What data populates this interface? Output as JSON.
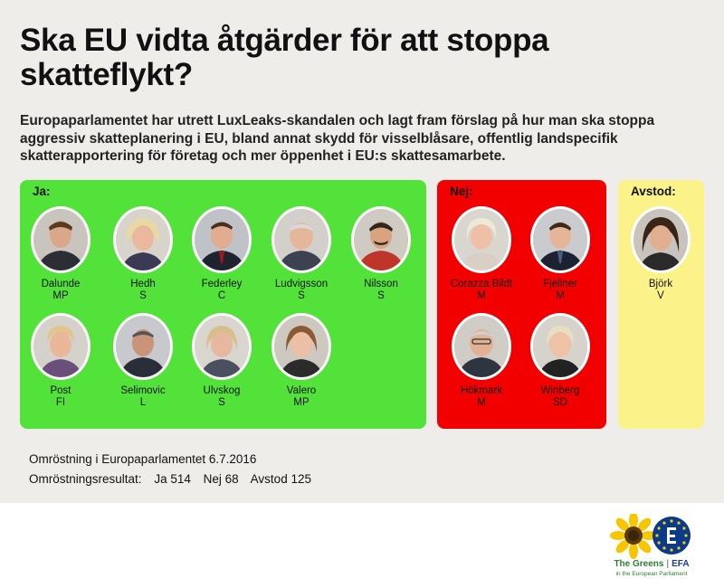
{
  "title": "Ska EU vidta åtgärder för att stoppa skatteflykt?",
  "intro": "Europaparlamentet har utrett LuxLeaks-skandalen och lagt fram förslag på hur man ska stoppa aggressiv skatteplanering i EU, bland annat skydd för visselblåsare, offentlig landspecifik skatterapportering för företag och mer öppenhet i EU:s skattesamarbete.",
  "colors": {
    "ja": "#52e23a",
    "nej": "#f20000",
    "avstod": "#fbf38a"
  },
  "groups": {
    "ja": {
      "label": "Ja:",
      "members": [
        {
          "name": "Dalunde",
          "party": "MP"
        },
        {
          "name": "Hedh",
          "party": "S"
        },
        {
          "name": "Federley",
          "party": "C"
        },
        {
          "name": "Ludvigsson",
          "party": "S"
        },
        {
          "name": "Nilsson",
          "party": "S"
        },
        {
          "name": "Post",
          "party": "FI"
        },
        {
          "name": "Selimovic",
          "party": "L"
        },
        {
          "name": "Ulvskog",
          "party": "S"
        },
        {
          "name": "Valero",
          "party": "MP"
        }
      ]
    },
    "nej": {
      "label": "Nej:",
      "members": [
        {
          "name": "Corazza Bildt",
          "party": "M"
        },
        {
          "name": "Fjellner",
          "party": "M"
        },
        {
          "name": "Hökmark",
          "party": "M"
        },
        {
          "name": "Winberg",
          "party": "SD"
        }
      ]
    },
    "avstod": {
      "label": "Avstod:",
      "members": [
        {
          "name": "Björk",
          "party": "V"
        }
      ]
    }
  },
  "footer": {
    "line1": "Omröstning i Europaparlamentet 6.7.2016",
    "result_label": "Omröstningsresultat:",
    "ja": "Ja 514",
    "nej": "Nej 68",
    "avstod": "Avstod 125"
  },
  "logo": {
    "icon": "sunflower-efa-logo",
    "name": "The Greens",
    "sep": "|",
    "efa": "EFA",
    "sub": "in the European Parliament"
  }
}
